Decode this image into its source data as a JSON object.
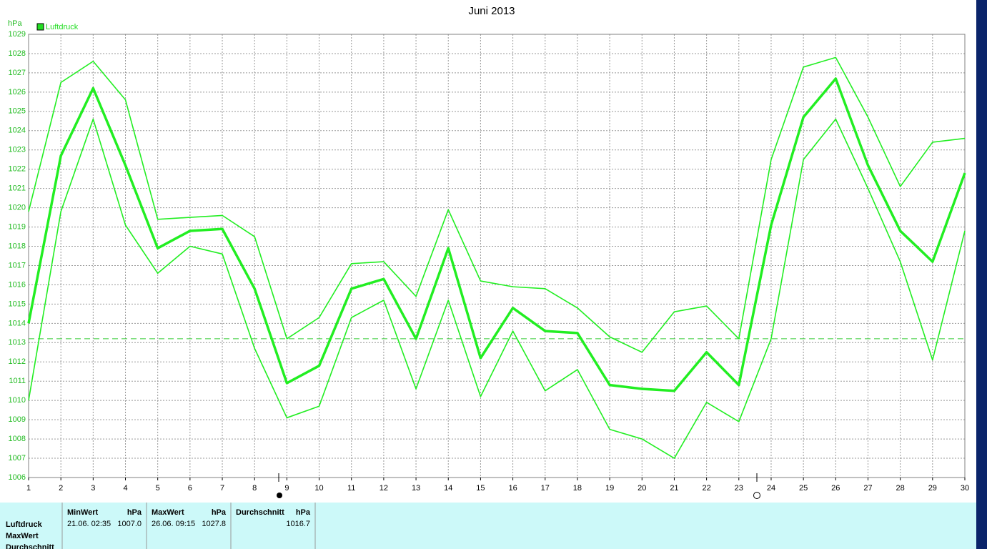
{
  "chart_data": {
    "type": "line",
    "title": "Juni 2013",
    "y_unit": "hPa",
    "legend": "Luftdruck",
    "legend_color": "#22dd22",
    "categories": [
      "1",
      "2",
      "3",
      "4",
      "5",
      "6",
      "7",
      "8",
      "9",
      "10",
      "11",
      "12",
      "13",
      "14",
      "15",
      "16",
      "17",
      "18",
      "19",
      "20",
      "21",
      "22",
      "23",
      "24",
      "25",
      "26",
      "27",
      "28",
      "29",
      "30"
    ],
    "series": [
      {
        "color": "#22ee22",
        "width": 1.6,
        "values": [
          1019.8,
          1026.5,
          1027.6,
          1025.6,
          1019.4,
          1019.5,
          1019.6,
          1018.5,
          1013.2,
          1014.3,
          1017.1,
          1017.2,
          1015.4,
          1019.9,
          1016.2,
          1015.9,
          1015.8,
          1014.8,
          1013.3,
          1012.5,
          1014.6,
          1014.9,
          1013.2,
          1022.5,
          1027.3,
          1027.8,
          1024.7,
          1021.1,
          1023.4,
          1023.6
        ]
      },
      {
        "color": "#22ee22",
        "width": 3.5,
        "values": [
          1014.0,
          1022.7,
          1026.2,
          1022.2,
          1017.9,
          1018.8,
          1018.9,
          1015.8,
          1010.9,
          1011.8,
          1015.8,
          1016.3,
          1013.2,
          1017.9,
          1012.2,
          1014.8,
          1013.6,
          1013.5,
          1010.8,
          1010.6,
          1010.5,
          1012.5,
          1010.8,
          1019.1,
          1024.7,
          1026.7,
          1022.2,
          1018.8,
          1017.2,
          1021.8
        ]
      },
      {
        "color": "#22ee22",
        "width": 1.6,
        "values": [
          1010.0,
          1019.8,
          1024.6,
          1019.1,
          1016.6,
          1018.0,
          1017.6,
          1012.7,
          1009.1,
          1009.7,
          1014.3,
          1015.2,
          1010.6,
          1015.2,
          1010.2,
          1013.6,
          1010.5,
          1011.6,
          1008.5,
          1008.0,
          1007.0,
          1009.9,
          1008.9,
          1013.2,
          1022.5,
          1024.6,
          1021.0,
          1017.2,
          1012.1,
          1018.8
        ]
      }
    ],
    "reference_line": 1013.2,
    "reference_color": "#33cc33",
    "ylim": [
      1006,
      1029
    ],
    "yticks": [
      1006,
      1007,
      1008,
      1009,
      1010,
      1011,
      1012,
      1013,
      1014,
      1015,
      1016,
      1017,
      1018,
      1019,
      1020,
      1021,
      1022,
      1023,
      1024,
      1025,
      1026,
      1027,
      1028,
      1029
    ],
    "grid": true
  },
  "stats": {
    "row_labels": [
      "Luftdruck",
      "MaxWert",
      "Durchschnitt"
    ],
    "columns": [
      {
        "title": "MinWert",
        "unit": "hPa",
        "time": "21.06. 02:35",
        "value": "1007.0"
      },
      {
        "title": "MaxWert",
        "unit": "hPa",
        "time": "26.06. 09:15",
        "value": "1027.8"
      },
      {
        "title": "Durchschnitt",
        "unit": "hPa",
        "value": "1016.7"
      }
    ]
  }
}
